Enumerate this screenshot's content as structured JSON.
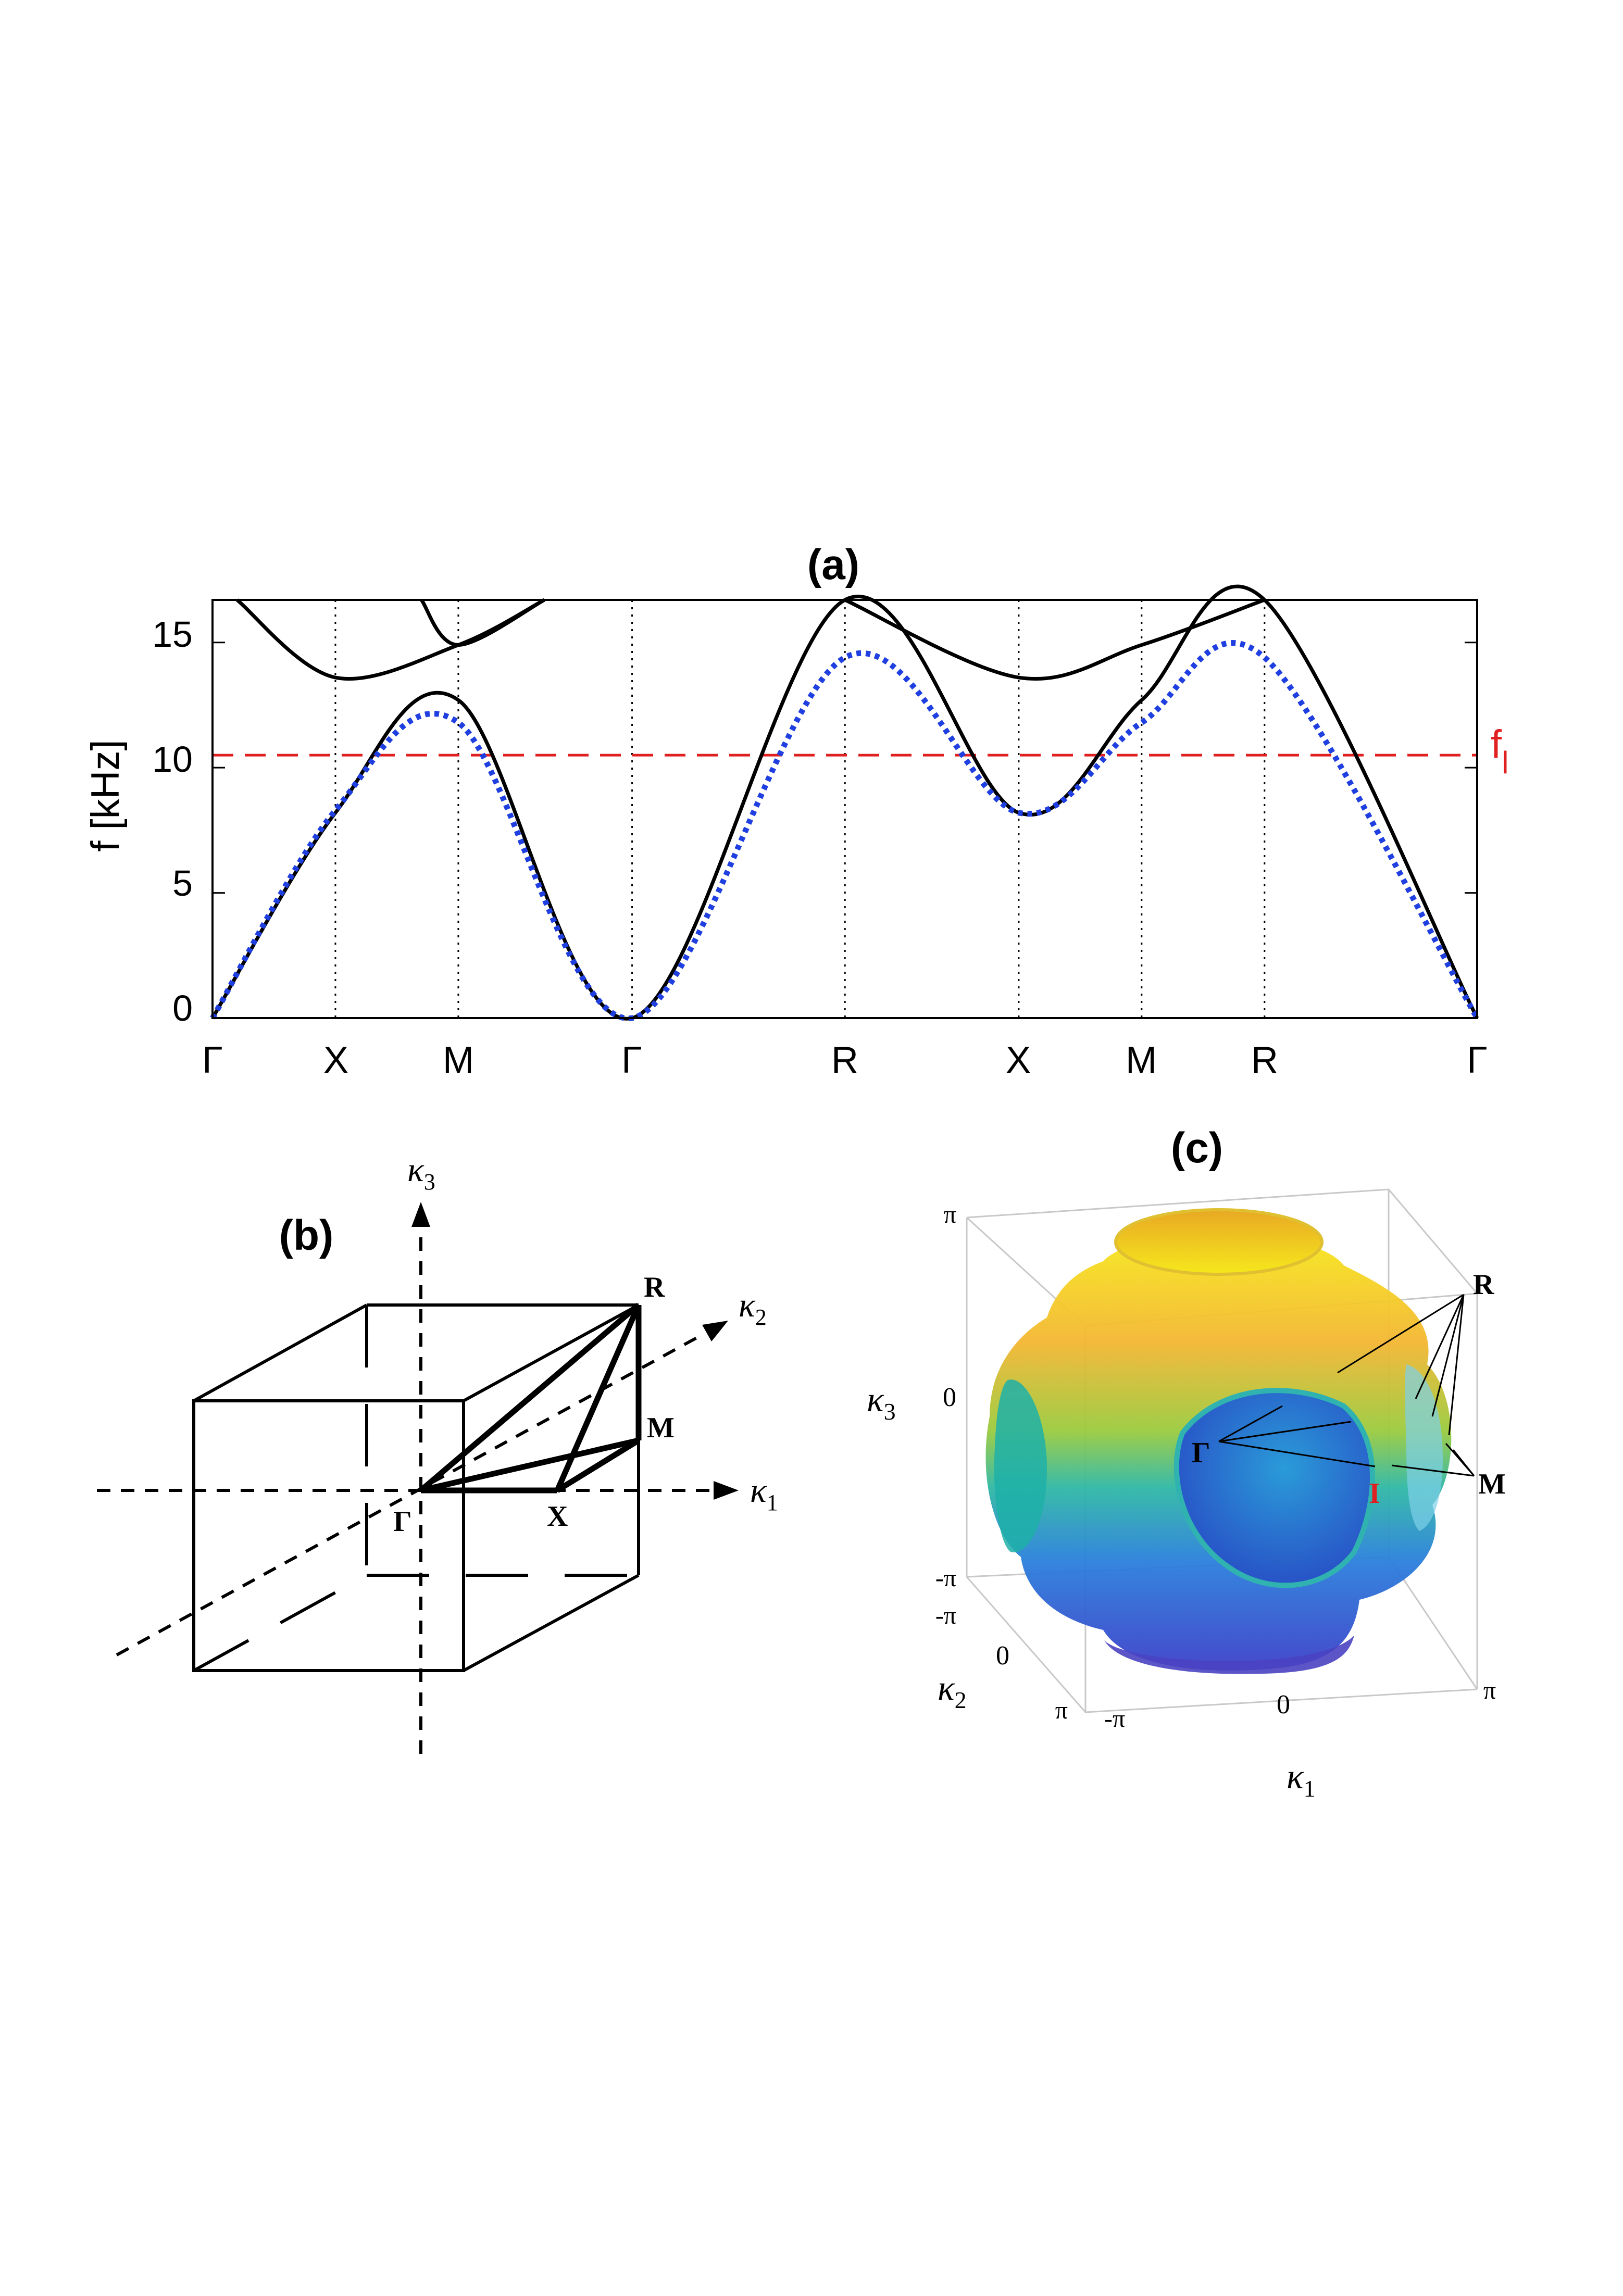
{
  "panel_a": {
    "label": "(a)",
    "ylabel": "f [kHz]",
    "y_ticks": [
      "0",
      "5",
      "10",
      "15"
    ],
    "x_ticks": [
      "Γ",
      "X",
      "M",
      "Γ",
      "R",
      "X",
      "M",
      "R",
      "Γ"
    ],
    "fl_label": "f",
    "fl_sub": "l",
    "colors": {
      "bands": "#000000",
      "fit": "#1f3fe0",
      "fl": "#e02020"
    }
  },
  "panel_b": {
    "label": "(b)",
    "k1": "κ",
    "k1_sub": "1",
    "k2": "κ",
    "k2_sub": "2",
    "k3": "κ",
    "k3_sub": "3",
    "pt_R": "R",
    "pt_M": "M",
    "pt_X": "X",
    "pt_G": "Γ"
  },
  "panel_c": {
    "label": "(c)",
    "pi_top": "π",
    "zero_k3": "0",
    "mpi_k3": "-π",
    "mpi_k2": "-π",
    "zero_k2": "0",
    "pi_k2": "π",
    "mpi_k1": "-π",
    "zero_k1": "0",
    "pi_k1": "π",
    "k3": "κ",
    "k3_sub": "3",
    "k2": "κ",
    "k2_sub": "2",
    "k1": "κ",
    "k1_sub": "1",
    "pt_R": "R",
    "pt_G": "Γ",
    "pt_M": "M",
    "pt_I": "I"
  },
  "chart_data": {
    "type": "line",
    "title": "(a)",
    "xlabel": "",
    "ylabel": "f [kHz]",
    "ylim": [
      0,
      16.7
    ],
    "x_path": [
      "Γ",
      "X",
      "M",
      "Γ",
      "R",
      "X",
      "M",
      "R",
      "Γ"
    ],
    "x_positions": [
      0,
      1,
      2,
      3.414,
      5.146,
      6.56,
      7.56,
      8.56,
      10.29
    ],
    "reference_line": {
      "label": "fl",
      "y": 10.5,
      "style": "dashed",
      "color": "#e02020"
    },
    "series": [
      {
        "style": "solid",
        "color": "#000000",
        "points": [
          [
            0,
            0
          ],
          [
            1,
            8.2
          ],
          [
            2,
            12.7
          ],
          [
            3.414,
            0
          ],
          [
            5.146,
            16.7
          ],
          [
            6.56,
            8.2
          ],
          [
            7.56,
            12.7
          ],
          [
            8.56,
            16.7
          ],
          [
            10.29,
            0
          ]
        ]
      },
      {
        "style": "solid",
        "color": "#000000",
        "points": [
          [
            0.2,
            16.7
          ],
          [
            1,
            13.6
          ],
          [
            2,
            14.9
          ],
          [
            2.7,
            16.7
          ]
        ]
      },
      {
        "style": "solid",
        "color": "#000000",
        "points": [
          [
            1.7,
            16.7
          ],
          [
            2,
            14.9
          ],
          [
            2.7,
            16.7
          ]
        ]
      },
      {
        "style": "solid",
        "color": "#000000",
        "points": [
          [
            5.146,
            16.7
          ],
          [
            6.56,
            13.6
          ],
          [
            7.56,
            14.9
          ],
          [
            8.56,
            16.7
          ]
        ]
      },
      {
        "style": "dotted",
        "color": "#1f3fe0",
        "points": [
          [
            0,
            0
          ],
          [
            1,
            8.3
          ],
          [
            2,
            11.8
          ],
          [
            3.414,
            0
          ],
          [
            5.146,
            14.4
          ],
          [
            6.56,
            8.2
          ],
          [
            7.56,
            11.8
          ],
          [
            8.56,
            14.4
          ],
          [
            10.29,
            0
          ]
        ]
      }
    ]
  }
}
